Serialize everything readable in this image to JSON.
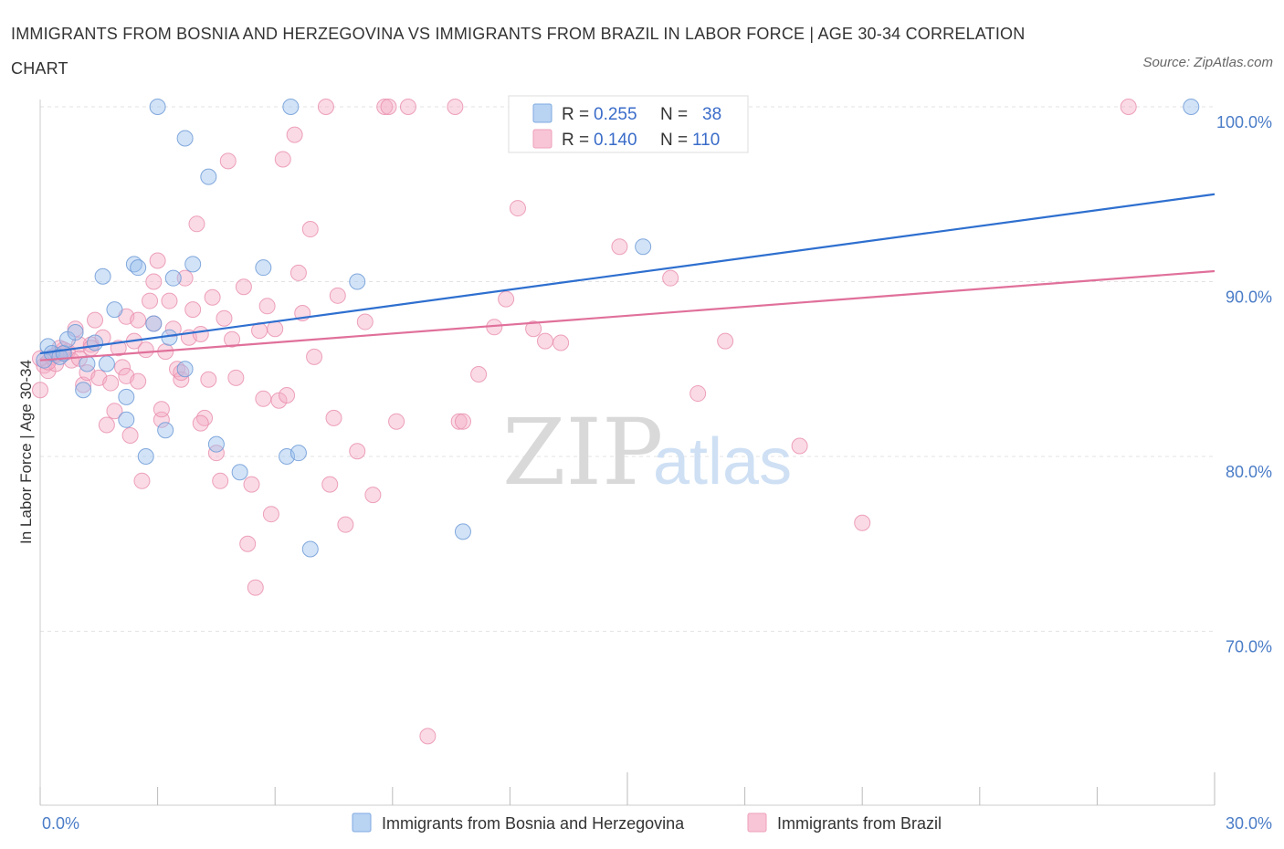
{
  "title": "IMMIGRANTS FROM BOSNIA AND HERZEGOVINA VS IMMIGRANTS FROM BRAZIL IN LABOR FORCE | AGE 30-34 CORRELATION CHART",
  "source": "Source: ZipAtlas.com",
  "watermark": {
    "zip": "ZIP",
    "atlas": "atlas"
  },
  "legend": {
    "rows": [
      {
        "r_label": "R =",
        "r_value": "0.255",
        "n_label": "N =",
        "n_value": "38"
      },
      {
        "r_label": "R =",
        "r_value": "0.140",
        "n_label": "N =",
        "n_value": "110"
      }
    ]
  },
  "bottom_legend": [
    "Immigrants from Bosnia and Herzegovina",
    "Immigrants from Brazil"
  ],
  "colors": {
    "blue": "#9cc0ee",
    "blue_line": "#2e6fcf",
    "pink": "#f5aec6",
    "pink_line": "#e0709a"
  },
  "chart_data": {
    "type": "scatter",
    "ylabel": "In Labor Force | Age 30-34",
    "x_ticks": [
      "0.0%",
      "30.0%"
    ],
    "y_ticks": [
      "100.0%",
      "90.0%",
      "80.0%",
      "70.0%"
    ],
    "xlim": [
      0,
      30
    ],
    "ylim": [
      60,
      100
    ],
    "grid": true,
    "series": [
      {
        "name": "Immigrants from Bosnia and Herzegovina",
        "trend": [
          [
            0,
            85.9
          ],
          [
            30,
            95.0
          ]
        ],
        "points": [
          [
            0.1,
            85.5
          ],
          [
            0.2,
            86.3
          ],
          [
            0.3,
            85.9
          ],
          [
            0.5,
            85.7
          ],
          [
            0.6,
            85.9
          ],
          [
            0.7,
            86.7
          ],
          [
            0.9,
            87.1
          ],
          [
            1.1,
            83.8
          ],
          [
            1.2,
            85.3
          ],
          [
            1.4,
            86.5
          ],
          [
            1.6,
            90.3
          ],
          [
            1.7,
            85.3
          ],
          [
            1.9,
            88.4
          ],
          [
            2.2,
            82.1
          ],
          [
            2.2,
            83.4
          ],
          [
            2.4,
            91.0
          ],
          [
            2.5,
            90.8
          ],
          [
            2.7,
            80.0
          ],
          [
            2.9,
            87.6
          ],
          [
            3.0,
            100.0
          ],
          [
            3.2,
            81.5
          ],
          [
            3.3,
            86.8
          ],
          [
            3.4,
            90.2
          ],
          [
            3.7,
            85.0
          ],
          [
            3.7,
            98.2
          ],
          [
            3.9,
            91.0
          ],
          [
            4.3,
            96.0
          ],
          [
            4.5,
            80.7
          ],
          [
            5.1,
            79.1
          ],
          [
            5.7,
            90.8
          ],
          [
            6.3,
            80.0
          ],
          [
            6.4,
            100.0
          ],
          [
            6.6,
            80.2
          ],
          [
            6.9,
            74.7
          ],
          [
            8.1,
            90.0
          ],
          [
            10.8,
            75.7
          ],
          [
            15.4,
            92.0
          ],
          [
            29.4,
            100.0
          ]
        ]
      },
      {
        "name": "Immigrants from Brazil",
        "trend": [
          [
            0,
            85.5
          ],
          [
            30,
            90.6
          ]
        ],
        "points": [
          [
            0.0,
            83.8
          ],
          [
            0.1,
            85.2
          ],
          [
            0.2,
            84.9
          ],
          [
            0.3,
            85.7
          ],
          [
            0.4,
            85.3
          ],
          [
            0.5,
            86.2
          ],
          [
            0.6,
            85.9
          ],
          [
            0.7,
            86.0
          ],
          [
            0.8,
            85.5
          ],
          [
            0.9,
            87.3
          ],
          [
            1.0,
            86.4
          ],
          [
            1.1,
            84.1
          ],
          [
            1.2,
            84.8
          ],
          [
            1.3,
            86.4
          ],
          [
            1.4,
            87.8
          ],
          [
            1.5,
            84.5
          ],
          [
            1.6,
            86.8
          ],
          [
            1.7,
            81.8
          ],
          [
            1.8,
            84.2
          ],
          [
            1.9,
            82.6
          ],
          [
            2.0,
            86.2
          ],
          [
            2.1,
            85.1
          ],
          [
            2.2,
            84.6
          ],
          [
            2.2,
            88.0
          ],
          [
            2.3,
            81.2
          ],
          [
            2.4,
            86.6
          ],
          [
            2.5,
            84.3
          ],
          [
            2.5,
            87.8
          ],
          [
            2.6,
            78.6
          ],
          [
            2.7,
            86.1
          ],
          [
            2.8,
            88.9
          ],
          [
            2.9,
            90.0
          ],
          [
            2.9,
            87.6
          ],
          [
            3.0,
            91.2
          ],
          [
            3.1,
            82.1
          ],
          [
            3.1,
            82.7
          ],
          [
            3.2,
            86.0
          ],
          [
            3.3,
            88.9
          ],
          [
            3.4,
            87.3
          ],
          [
            3.5,
            85.0
          ],
          [
            3.6,
            84.4
          ],
          [
            3.7,
            90.2
          ],
          [
            3.8,
            86.8
          ],
          [
            3.9,
            88.4
          ],
          [
            4.0,
            93.3
          ],
          [
            4.1,
            87.0
          ],
          [
            4.2,
            82.2
          ],
          [
            4.3,
            84.4
          ],
          [
            4.4,
            89.1
          ],
          [
            4.5,
            80.2
          ],
          [
            4.6,
            78.6
          ],
          [
            4.7,
            87.9
          ],
          [
            4.8,
            96.9
          ],
          [
            4.9,
            86.7
          ],
          [
            5.0,
            84.5
          ],
          [
            5.2,
            89.7
          ],
          [
            5.3,
            75.0
          ],
          [
            5.4,
            78.4
          ],
          [
            5.5,
            72.5
          ],
          [
            5.6,
            87.2
          ],
          [
            5.7,
            83.3
          ],
          [
            5.8,
            88.6
          ],
          [
            5.9,
            76.7
          ],
          [
            6.0,
            87.3
          ],
          [
            6.1,
            83.2
          ],
          [
            6.2,
            97.0
          ],
          [
            6.3,
            83.5
          ],
          [
            6.5,
            98.4
          ],
          [
            6.6,
            90.5
          ],
          [
            6.7,
            88.2
          ],
          [
            6.9,
            93.0
          ],
          [
            7.0,
            85.7
          ],
          [
            7.3,
            100.0
          ],
          [
            7.4,
            78.4
          ],
          [
            7.5,
            82.2
          ],
          [
            7.6,
            89.2
          ],
          [
            7.8,
            76.1
          ],
          [
            8.1,
            80.3
          ],
          [
            8.3,
            87.7
          ],
          [
            8.5,
            77.8
          ],
          [
            8.8,
            100.0
          ],
          [
            8.9,
            100.0
          ],
          [
            9.1,
            82.0
          ],
          [
            9.4,
            100.0
          ],
          [
            9.9,
            64.0
          ],
          [
            10.6,
            100.0
          ],
          [
            10.7,
            82.0
          ],
          [
            10.8,
            82.0
          ],
          [
            11.2,
            84.7
          ],
          [
            11.6,
            87.4
          ],
          [
            11.9,
            89.0
          ],
          [
            12.2,
            94.2
          ],
          [
            12.6,
            87.3
          ],
          [
            12.9,
            86.6
          ],
          [
            13.3,
            86.5
          ],
          [
            14.8,
            92.0
          ],
          [
            16.1,
            90.2
          ],
          [
            16.8,
            83.6
          ],
          [
            17.5,
            86.6
          ],
          [
            19.4,
            80.6
          ],
          [
            21.0,
            76.2
          ],
          [
            27.8,
            100.0
          ],
          [
            0.0,
            85.6
          ],
          [
            0.2,
            85.4
          ],
          [
            0.4,
            85.8
          ],
          [
            0.6,
            86.1
          ],
          [
            1.0,
            85.6
          ],
          [
            1.3,
            86.2
          ],
          [
            3.6,
            84.8
          ],
          [
            4.1,
            81.9
          ]
        ]
      }
    ]
  }
}
